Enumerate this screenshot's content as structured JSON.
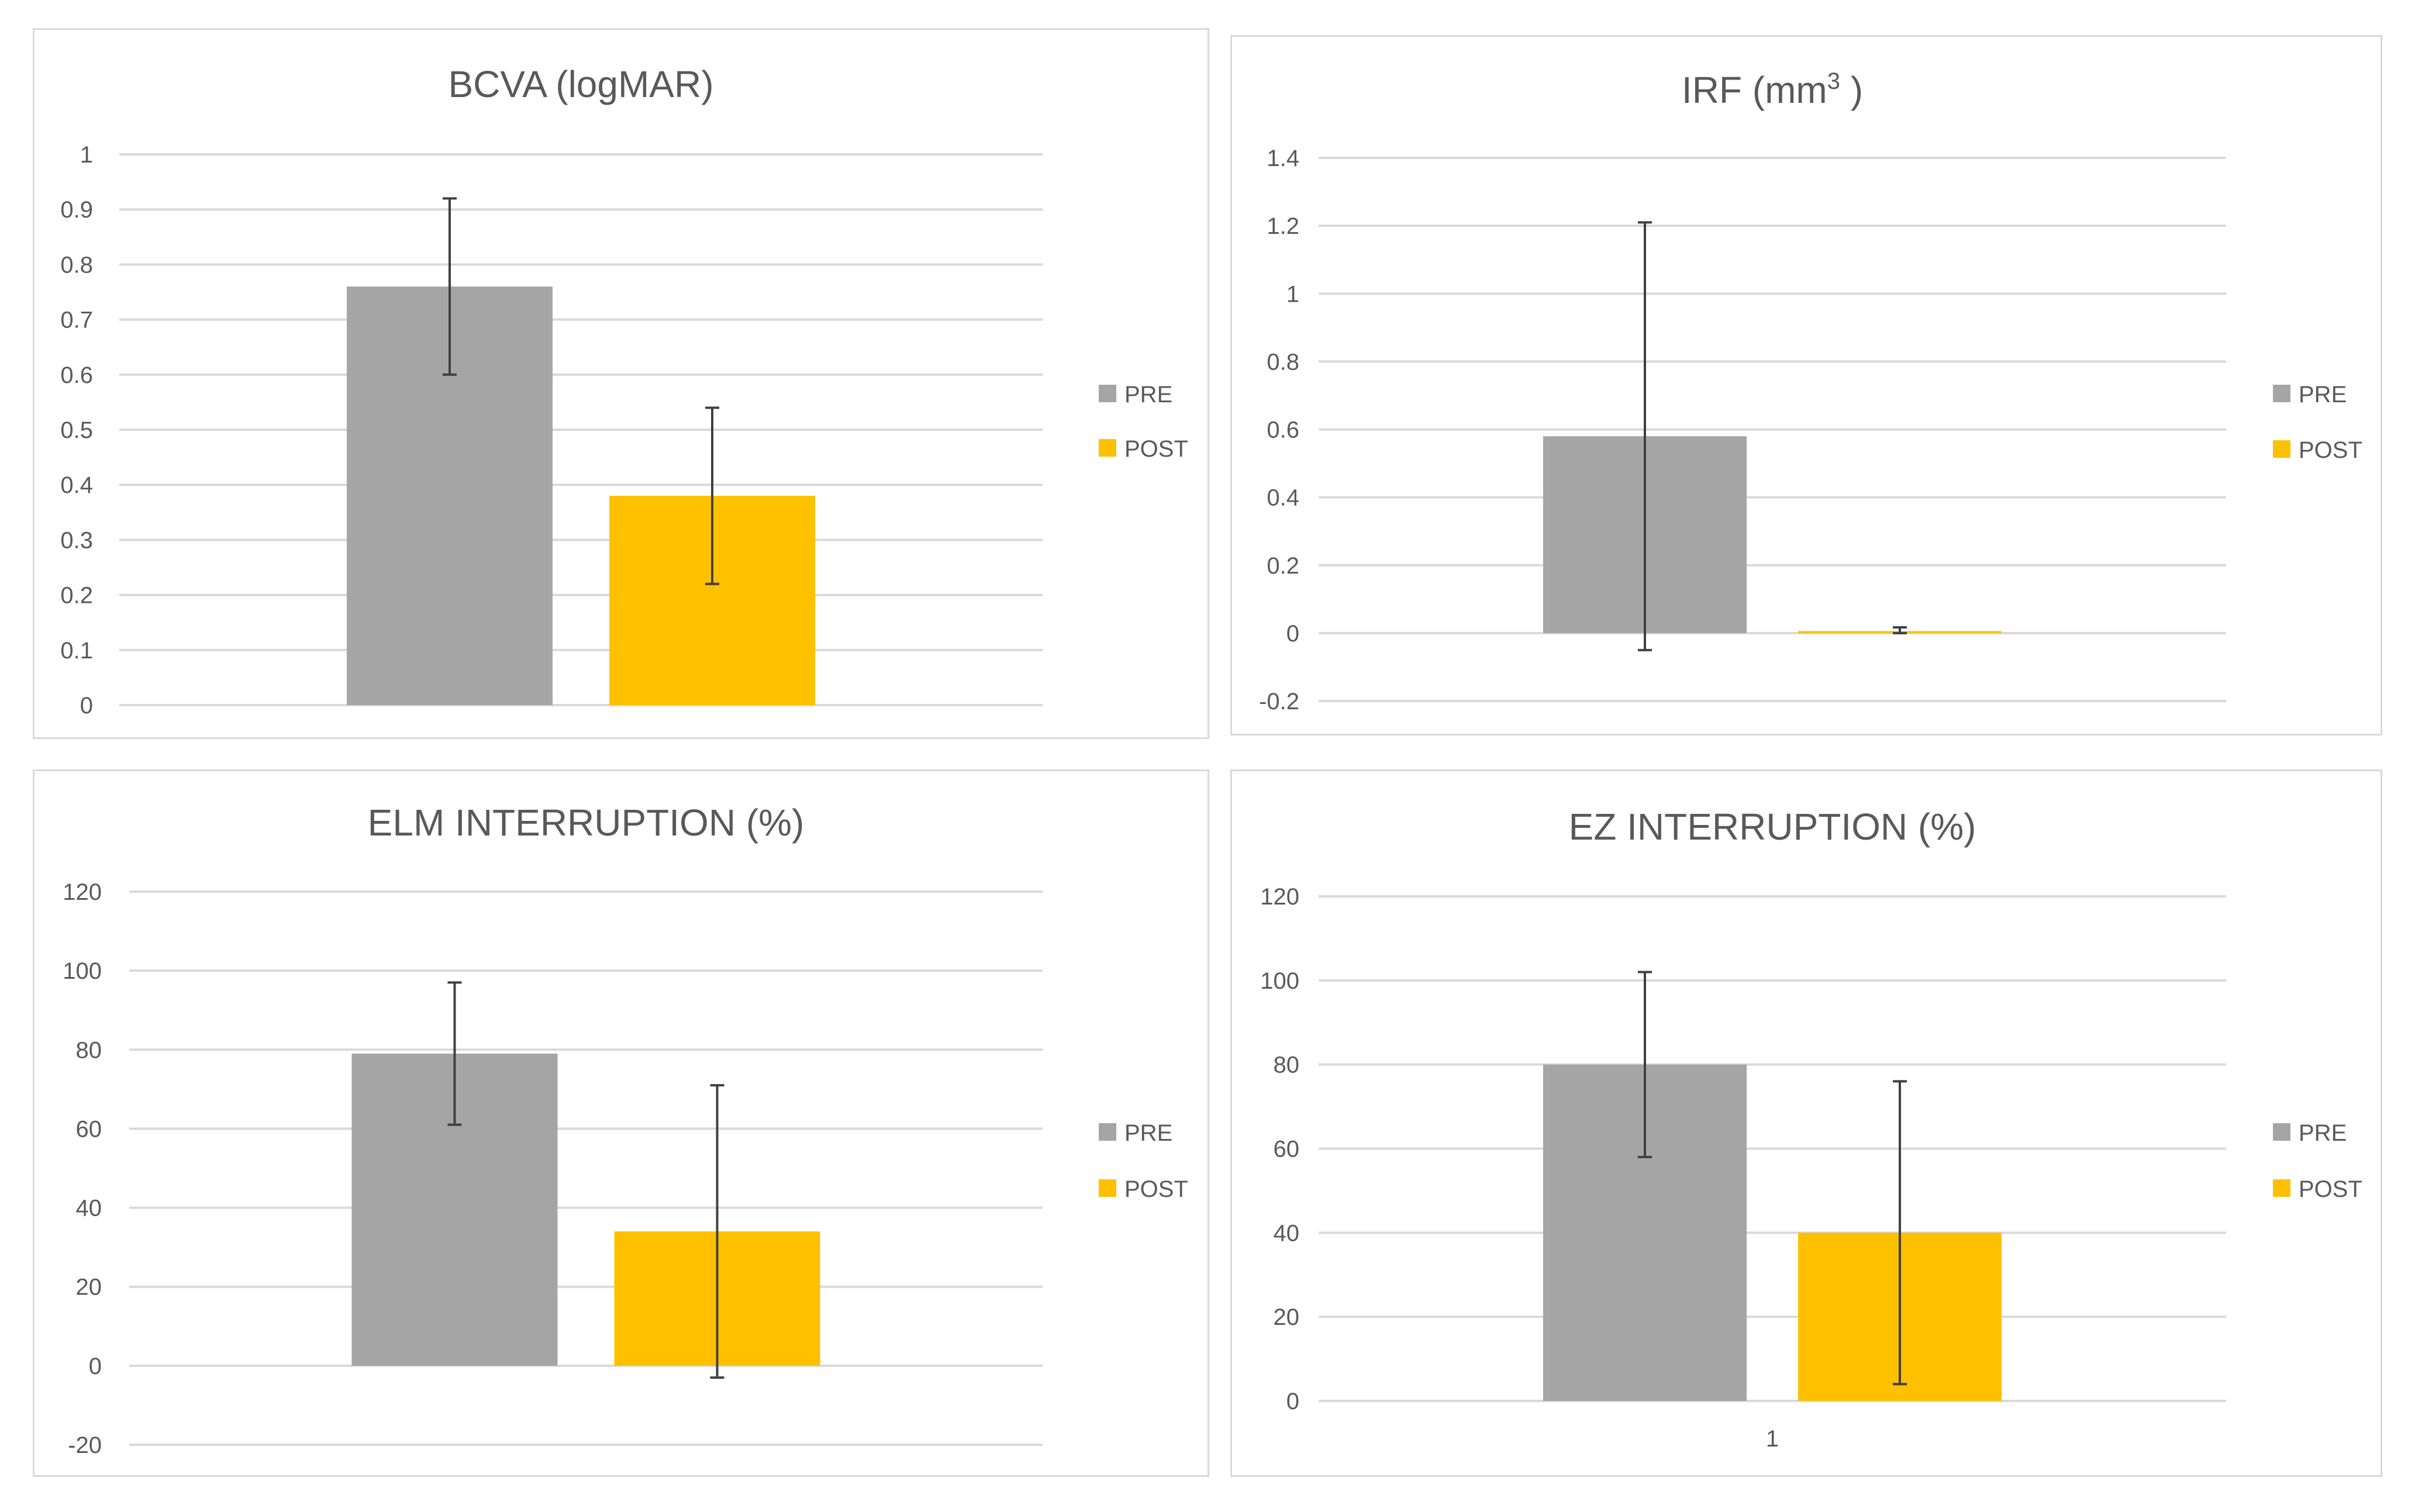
{
  "colors": {
    "pre": "#a5a5a5",
    "post": "#ffc000",
    "grid": "#d9d9d9",
    "text": "#595959",
    "error": "#404040"
  },
  "chart_data": [
    {
      "type": "bar",
      "title": "BCVA (logMAR)",
      "title_superscript": "",
      "title_suffix": "",
      "categories": [
        ""
      ],
      "series": [
        {
          "name": "PRE",
          "values": [
            0.76
          ],
          "error_low": [
            0.6
          ],
          "error_high": [
            0.92
          ]
        },
        {
          "name": "POST",
          "values": [
            0.38
          ],
          "error_low": [
            0.22
          ],
          "error_high": [
            0.54
          ]
        }
      ],
      "ylim": [
        0,
        1
      ],
      "yticks": [
        0,
        0.1,
        0.2,
        0.3,
        0.4,
        0.5,
        0.6,
        0.7,
        0.8,
        0.9,
        1
      ],
      "ytick_labels": [
        "0",
        "0.1",
        "0.2",
        "0.3",
        "0.4",
        "0.5",
        "0.6",
        "0.7",
        "0.8",
        "0.9",
        "1"
      ],
      "xtick_label": "",
      "legend": [
        "PRE",
        "POST"
      ],
      "legend_position": "right",
      "grid": true
    },
    {
      "type": "bar",
      "title": "IRF (mm",
      "title_superscript": "3",
      "title_suffix": " )",
      "categories": [
        ""
      ],
      "series": [
        {
          "name": "PRE",
          "values": [
            0.58
          ],
          "error_low": [
            -0.05
          ],
          "error_high": [
            1.21
          ]
        },
        {
          "name": "POST",
          "values": [
            0.006
          ],
          "error_low": [
            0.0
          ],
          "error_high": [
            0.017
          ]
        }
      ],
      "ylim": [
        -0.2,
        1.4
      ],
      "yticks": [
        -0.2,
        0,
        0.2,
        0.4,
        0.6,
        0.8,
        1,
        1.2,
        1.4
      ],
      "ytick_labels": [
        "-0.2",
        "0",
        "0.2",
        "0.4",
        "0.6",
        "0.8",
        "1",
        "1.2",
        "1.4"
      ],
      "xtick_label": "",
      "legend": [
        "PRE",
        "POST"
      ],
      "legend_position": "right",
      "grid": true
    },
    {
      "type": "bar",
      "title": "ELM INTERRUPTION (%)",
      "title_superscript": "",
      "title_suffix": "",
      "categories": [
        ""
      ],
      "series": [
        {
          "name": "PRE",
          "values": [
            79
          ],
          "error_low": [
            61
          ],
          "error_high": [
            97
          ]
        },
        {
          "name": "POST",
          "values": [
            34
          ],
          "error_low": [
            -3
          ],
          "error_high": [
            71
          ]
        }
      ],
      "ylim": [
        -20,
        120
      ],
      "yticks": [
        -20,
        0,
        20,
        40,
        60,
        80,
        100,
        120
      ],
      "ytick_labels": [
        "-20",
        "0",
        "20",
        "40",
        "60",
        "80",
        "100",
        "120"
      ],
      "xtick_label": "",
      "legend": [
        "PRE",
        "POST"
      ],
      "legend_position": "right",
      "grid": true
    },
    {
      "type": "bar",
      "title": "EZ INTERRUPTION (%)",
      "title_superscript": "",
      "title_suffix": "",
      "categories": [
        "1"
      ],
      "series": [
        {
          "name": "PRE",
          "values": [
            80
          ],
          "error_low": [
            58
          ],
          "error_high": [
            102
          ]
        },
        {
          "name": "POST",
          "values": [
            40
          ],
          "error_low": [
            4
          ],
          "error_high": [
            76
          ]
        }
      ],
      "ylim": [
        0,
        120
      ],
      "yticks": [
        0,
        20,
        40,
        60,
        80,
        100,
        120
      ],
      "ytick_labels": [
        "0",
        "20",
        "40",
        "60",
        "80",
        "100",
        "120"
      ],
      "xtick_label": "1",
      "legend": [
        "PRE",
        "POST"
      ],
      "legend_position": "right",
      "grid": true
    }
  ]
}
